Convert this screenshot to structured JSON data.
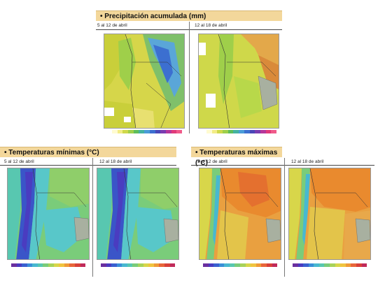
{
  "sections": {
    "precip": {
      "title": "Precipitación acumulada (mm)",
      "panel_a": "5 al 12 de abril",
      "panel_b": "12 al 18 de abril"
    },
    "tmin": {
      "title": "Temperaturas mínimas (°C)",
      "panel_a": "5 al 12 de abril",
      "panel_b": "12 al 18 de abril"
    },
    "tmax": {
      "title": "Temperaturas máximas (°C)",
      "panel_a": "5 al 12 de abril",
      "panel_b": "12 al 18 de abril"
    }
  },
  "colors": {
    "header_bg": "#f3d79b",
    "precip_dry": "#c9cf3a",
    "precip_wet": "#5aa6d8",
    "tmin_cold": "#3a55c8",
    "tmin_mid": "#58c7c9",
    "tmax_warm": "#e98a2e",
    "tmax_mid": "#e3c44a"
  },
  "legends": {
    "precip": [
      "#fffbd0",
      "#f3ec86",
      "#cfd84a",
      "#9fcf4a",
      "#5fbd5a",
      "#45b2a0",
      "#4a9cd8",
      "#3c6fd0",
      "#4a47b8",
      "#7a3cb0",
      "#b5379a",
      "#e03a7a",
      "#f05a8a"
    ],
    "temp": [
      "#6a2fa0",
      "#4a3cc0",
      "#3a60d0",
      "#3a8fd8",
      "#48b8d0",
      "#58c7b0",
      "#7acc7a",
      "#a7d25a",
      "#d8d64a",
      "#f0c440",
      "#f09a38",
      "#e8663a",
      "#d8403a",
      "#c02a5a"
    ]
  }
}
